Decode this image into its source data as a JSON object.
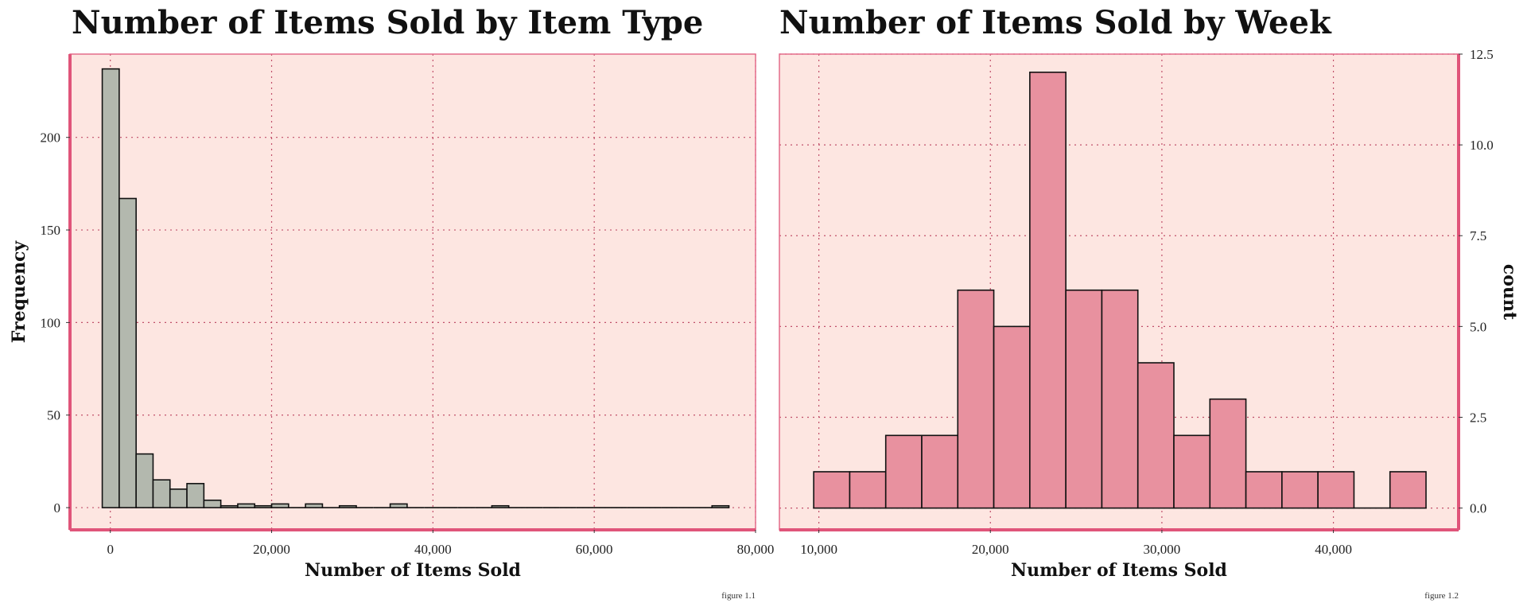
{
  "chart_data": [
    {
      "type": "bar",
      "subtype": "histogram",
      "title": "Number of Items Sold by Item Type",
      "xlabel": "Number of Items Sold",
      "ylabel": "Frequency",
      "caption": "figure 1.1",
      "xlim": [
        -5000,
        80000
      ],
      "ylim": [
        -12,
        245
      ],
      "xticks": [
        0,
        20000,
        40000,
        60000,
        80000
      ],
      "xtick_labels": [
        "0",
        "20,000",
        "40,000",
        "60,000",
        "80,000"
      ],
      "yticks": [
        0,
        50,
        100,
        150,
        200
      ],
      "ytick_labels": [
        "0",
        "50",
        "100",
        "150",
        "200"
      ],
      "grid": true,
      "y_axis_side": "left",
      "bar_color": "#b3b8ae",
      "bins": [
        {
          "x0": -1000,
          "x1": 1100,
          "count": 237
        },
        {
          "x0": 1100,
          "x1": 3200,
          "count": 167
        },
        {
          "x0": 3200,
          "x1": 5300,
          "count": 29
        },
        {
          "x0": 5300,
          "x1": 7400,
          "count": 15
        },
        {
          "x0": 7400,
          "x1": 9500,
          "count": 10
        },
        {
          "x0": 9500,
          "x1": 11600,
          "count": 13
        },
        {
          "x0": 11600,
          "x1": 13700,
          "count": 4
        },
        {
          "x0": 13700,
          "x1": 15800,
          "count": 1
        },
        {
          "x0": 15800,
          "x1": 17900,
          "count": 2
        },
        {
          "x0": 17900,
          "x1": 20000,
          "count": 1
        },
        {
          "x0": 20000,
          "x1": 22100,
          "count": 2
        },
        {
          "x0": 22100,
          "x1": 24200,
          "count": 0
        },
        {
          "x0": 24200,
          "x1": 26300,
          "count": 2
        },
        {
          "x0": 26300,
          "x1": 28400,
          "count": 0
        },
        {
          "x0": 28400,
          "x1": 30500,
          "count": 1
        },
        {
          "x0": 30500,
          "x1": 32600,
          "count": 0
        },
        {
          "x0": 32600,
          "x1": 34700,
          "count": 0
        },
        {
          "x0": 34700,
          "x1": 36800,
          "count": 2
        },
        {
          "x0": 36800,
          "x1": 38900,
          "count": 0
        },
        {
          "x0": 38900,
          "x1": 41000,
          "count": 0
        },
        {
          "x0": 41000,
          "x1": 43100,
          "count": 0
        },
        {
          "x0": 43100,
          "x1": 45200,
          "count": 0
        },
        {
          "x0": 45200,
          "x1": 47300,
          "count": 0
        },
        {
          "x0": 47300,
          "x1": 49400,
          "count": 1
        },
        {
          "x0": 49400,
          "x1": 51500,
          "count": 0
        },
        {
          "x0": 51500,
          "x1": 53600,
          "count": 0
        },
        {
          "x0": 53600,
          "x1": 55700,
          "count": 0
        },
        {
          "x0": 55700,
          "x1": 57800,
          "count": 0
        },
        {
          "x0": 57800,
          "x1": 59900,
          "count": 0
        },
        {
          "x0": 59900,
          "x1": 62000,
          "count": 0
        },
        {
          "x0": 62000,
          "x1": 64100,
          "count": 0
        },
        {
          "x0": 64100,
          "x1": 66200,
          "count": 0
        },
        {
          "x0": 66200,
          "x1": 68300,
          "count": 0
        },
        {
          "x0": 68300,
          "x1": 70400,
          "count": 0
        },
        {
          "x0": 70400,
          "x1": 72500,
          "count": 0
        },
        {
          "x0": 72500,
          "x1": 74600,
          "count": 0
        },
        {
          "x0": 74600,
          "x1": 76700,
          "count": 1
        }
      ]
    },
    {
      "type": "bar",
      "subtype": "histogram",
      "title": "Number of Items Sold by Week",
      "xlabel": "Number of Items Sold",
      "ylabel": "count",
      "caption": "figure 1.2",
      "xlim": [
        7700,
        47300
      ],
      "ylim": [
        -0.6,
        12.5
      ],
      "xticks": [
        10000,
        20000,
        30000,
        40000
      ],
      "xtick_labels": [
        "10,000",
        "20,000",
        "30,000",
        "40,000"
      ],
      "yticks": [
        0,
        2.5,
        5,
        7.5,
        10,
        12.5
      ],
      "ytick_labels": [
        "0.0",
        "2.5",
        "5.0",
        "7.5",
        "10.0",
        "12.5"
      ],
      "grid": true,
      "y_axis_side": "right",
      "bar_color": "#e8919f",
      "bins": [
        {
          "x0": 9700,
          "x1": 11800,
          "count": 1
        },
        {
          "x0": 11800,
          "x1": 13900,
          "count": 1
        },
        {
          "x0": 13900,
          "x1": 16000,
          "count": 2
        },
        {
          "x0": 16000,
          "x1": 18100,
          "count": 2
        },
        {
          "x0": 18100,
          "x1": 20200,
          "count": 6
        },
        {
          "x0": 20200,
          "x1": 22300,
          "count": 5
        },
        {
          "x0": 22300,
          "x1": 24400,
          "count": 12
        },
        {
          "x0": 24400,
          "x1": 26500,
          "count": 6
        },
        {
          "x0": 26500,
          "x1": 28600,
          "count": 6
        },
        {
          "x0": 28600,
          "x1": 30700,
          "count": 4
        },
        {
          "x0": 30700,
          "x1": 32800,
          "count": 2
        },
        {
          "x0": 32800,
          "x1": 34900,
          "count": 3
        },
        {
          "x0": 34900,
          "x1": 37000,
          "count": 1
        },
        {
          "x0": 37000,
          "x1": 39100,
          "count": 1
        },
        {
          "x0": 39100,
          "x1": 41200,
          "count": 1
        },
        {
          "x0": 41200,
          "x1": 43300,
          "count": 0
        },
        {
          "x0": 43300,
          "x1": 45400,
          "count": 1
        }
      ]
    }
  ]
}
